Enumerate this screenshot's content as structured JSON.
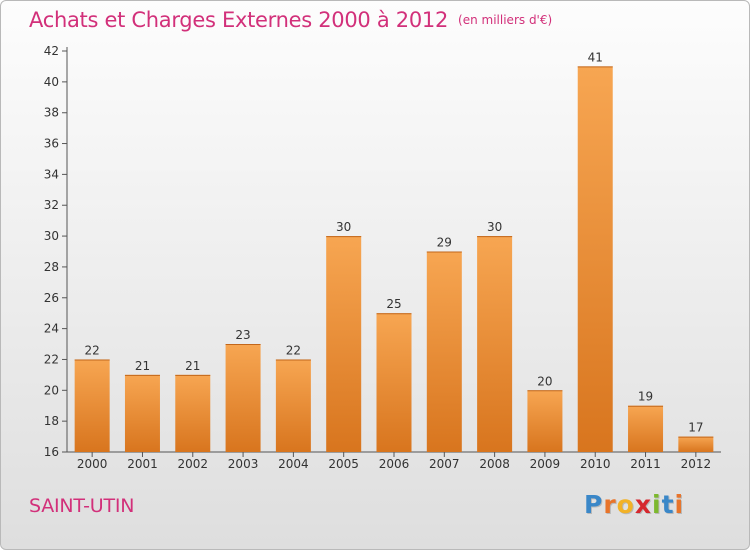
{
  "title": "Achats et Charges Externes 2000 à 2012",
  "subtitle": "(en milliers d'€)",
  "commune": "SAINT-UTIN",
  "logo": {
    "letters": [
      "P",
      "r",
      "o",
      "x",
      "i",
      "t",
      "i"
    ],
    "colors": [
      "#3a87c8",
      "#e8742a",
      "#f2b227",
      "#d6282e",
      "#7db82e",
      "#3a87c8",
      "#e8742a"
    ]
  },
  "colors": {
    "bar_light": "#f7a652",
    "bar_dark": "#d8751e",
    "title": "#d2307a"
  },
  "chart_data": {
    "type": "bar",
    "title": "Achats et Charges Externes 2000 à 2012",
    "subtitle": "(en milliers d'€)",
    "categories": [
      "2000",
      "2001",
      "2002",
      "2003",
      "2004",
      "2005",
      "2006",
      "2007",
      "2008",
      "2009",
      "2010",
      "2011",
      "2012"
    ],
    "values": [
      22,
      21,
      21,
      23,
      22,
      30,
      25,
      29,
      30,
      20,
      41,
      19,
      17
    ],
    "ylim": [
      16,
      42
    ],
    "yticks": [
      16,
      18,
      20,
      22,
      24,
      26,
      28,
      30,
      32,
      34,
      36,
      38,
      40,
      42
    ],
    "grid": false,
    "data_labels": true
  }
}
